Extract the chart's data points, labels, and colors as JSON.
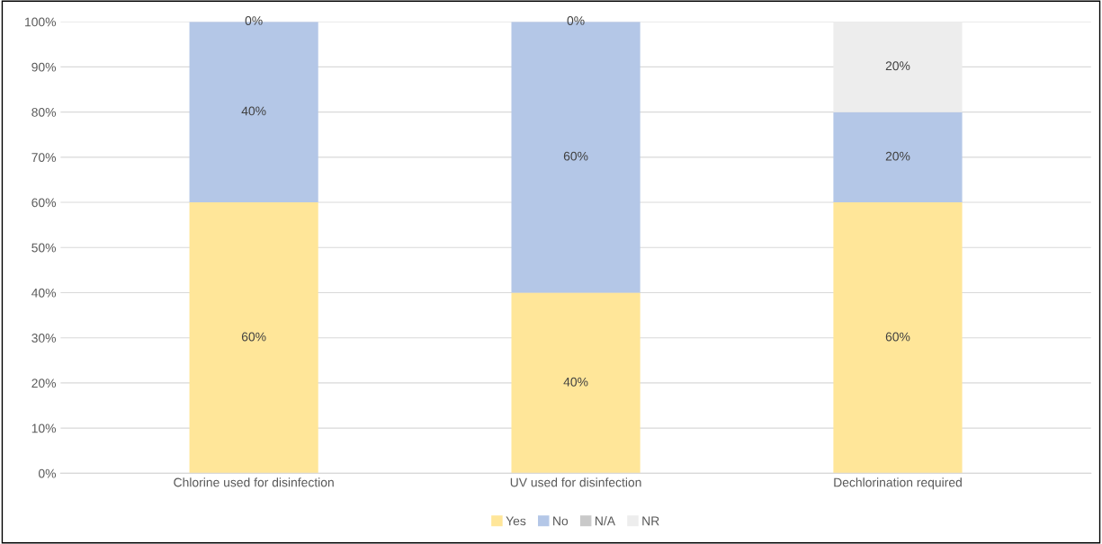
{
  "chart_data": {
    "type": "bar",
    "stacked": true,
    "categories": [
      "Chlorine used for disinfection",
      "UV used for disinfection",
      "Dechlorination required"
    ],
    "series": [
      {
        "name": "Yes",
        "color": "#ffe699",
        "values": [
          60,
          40,
          60
        ],
        "value_labels": [
          "60%",
          "40%",
          "60%"
        ]
      },
      {
        "name": "No",
        "color": "#b4c7e7",
        "values": [
          40,
          60,
          20
        ],
        "value_labels": [
          "40%",
          "60%",
          "20%"
        ]
      },
      {
        "name": "N/A",
        "color": "#c9c9c9",
        "values": [
          0,
          0,
          0
        ],
        "value_labels": [
          null,
          null,
          null
        ]
      },
      {
        "name": "NR",
        "color": "#ededed",
        "values": [
          0,
          0,
          20
        ],
        "value_labels": [
          "0%",
          "0%",
          "20%"
        ]
      }
    ],
    "ylim": [
      0,
      100
    ],
    "yticks": [
      {
        "value": 0,
        "label": "0%"
      },
      {
        "value": 10,
        "label": "10%"
      },
      {
        "value": 20,
        "label": "20%"
      },
      {
        "value": 30,
        "label": "30%"
      },
      {
        "value": 40,
        "label": "40%"
      },
      {
        "value": 50,
        "label": "50%"
      },
      {
        "value": 60,
        "label": "60%"
      },
      {
        "value": 70,
        "label": "70%"
      },
      {
        "value": 80,
        "label": "80%"
      },
      {
        "value": 90,
        "label": "90%"
      },
      {
        "value": 100,
        "label": "100%"
      }
    ],
    "grid": "y",
    "legend": "bottom"
  }
}
